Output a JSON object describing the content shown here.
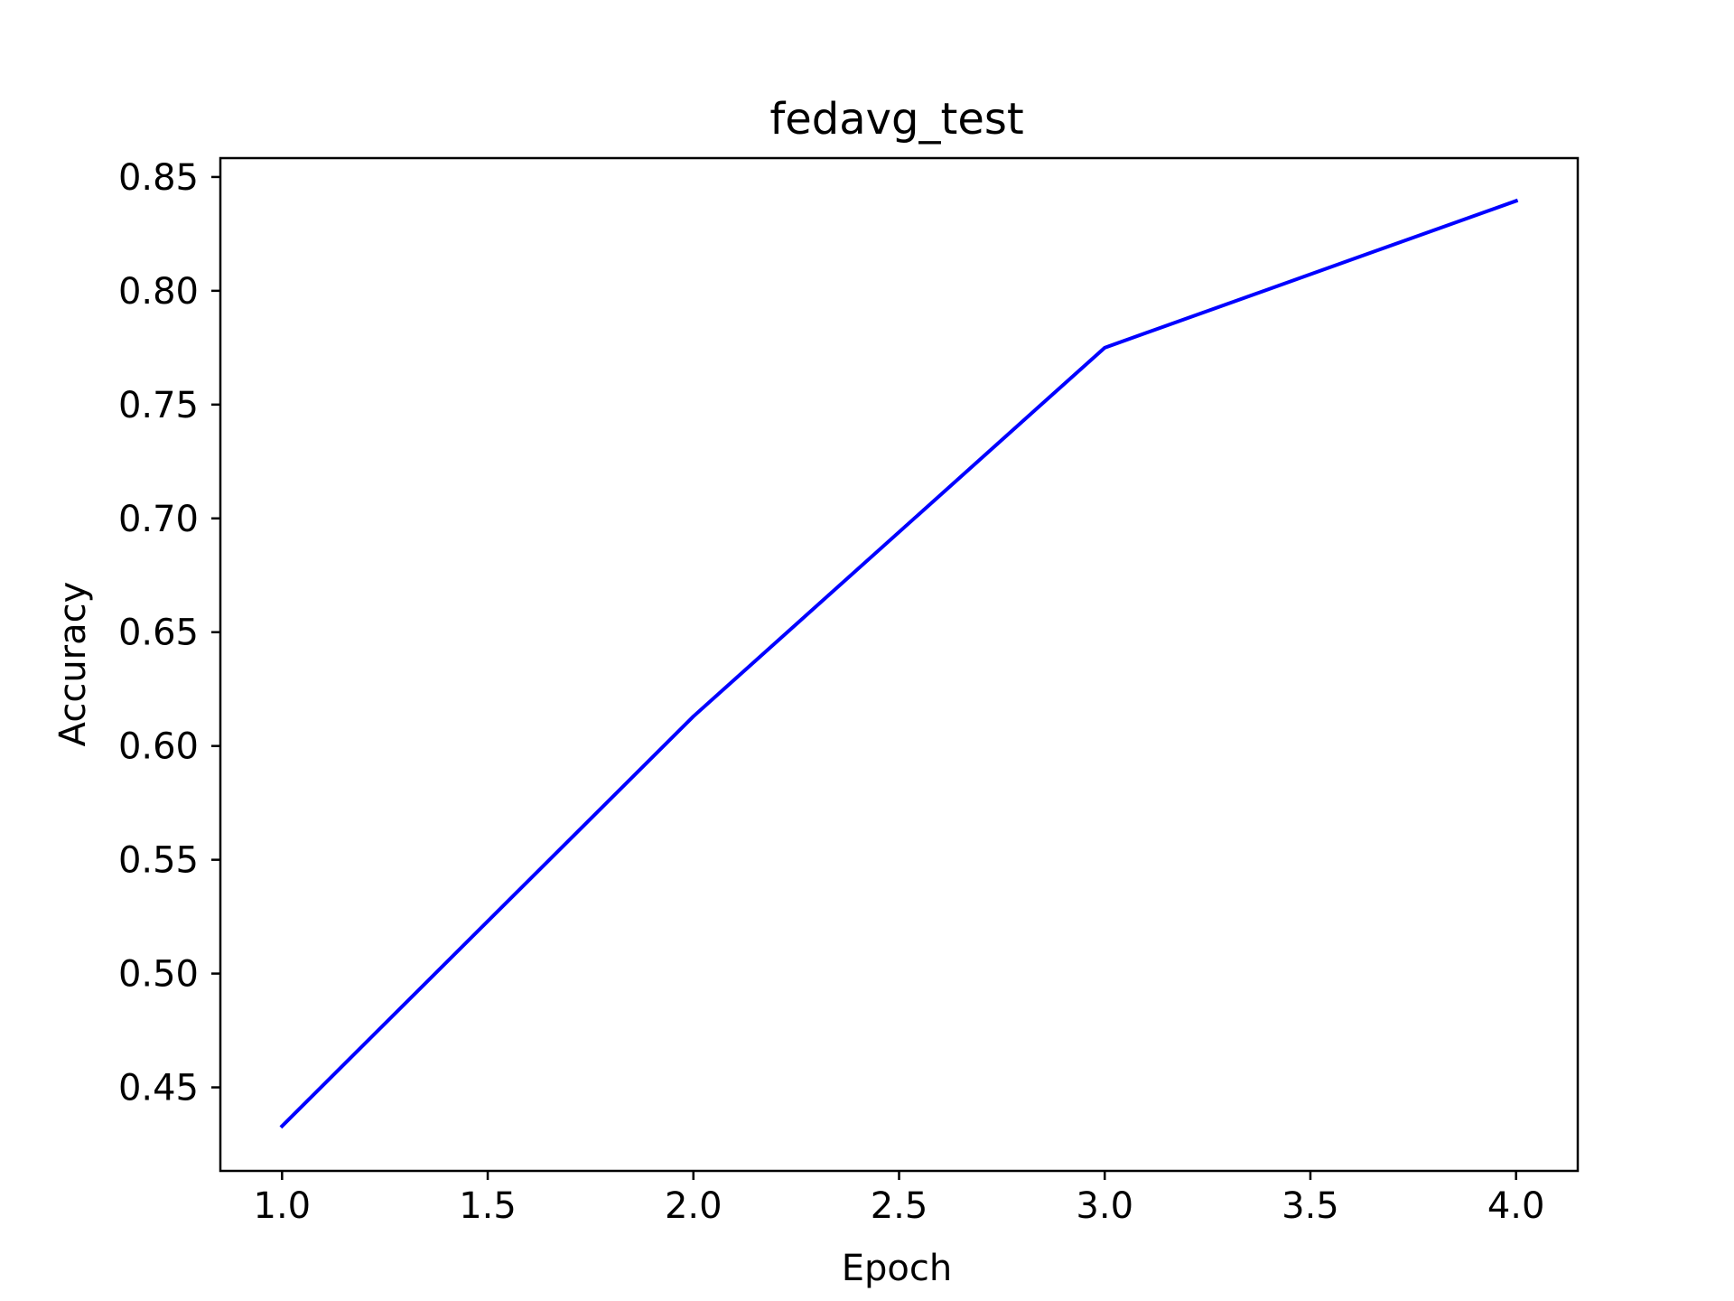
{
  "chart_data": {
    "type": "line",
    "title": "fedavg_test",
    "xlabel": "Epoch",
    "ylabel": "Accuracy",
    "xlim": [
      0.85,
      4.15
    ],
    "ylim": [
      0.4133,
      0.8583
    ],
    "xticks": [
      1.0,
      1.5,
      2.0,
      2.5,
      3.0,
      3.5,
      4.0
    ],
    "xtick_labels": [
      "1.0",
      "1.5",
      "2.0",
      "2.5",
      "3.0",
      "3.5",
      "4.0"
    ],
    "yticks": [
      0.45,
      0.5,
      0.55,
      0.6,
      0.65,
      0.7,
      0.75,
      0.8,
      0.85
    ],
    "ytick_labels": [
      "0.45",
      "0.50",
      "0.55",
      "0.60",
      "0.65",
      "0.70",
      "0.75",
      "0.80",
      "0.85"
    ],
    "grid": false,
    "series": [
      {
        "x": [
          1.0,
          2.0,
          3.0,
          4.0
        ],
        "values": [
          0.433,
          0.613,
          0.775,
          0.8395
        ],
        "color": "#0000ff"
      }
    ]
  }
}
